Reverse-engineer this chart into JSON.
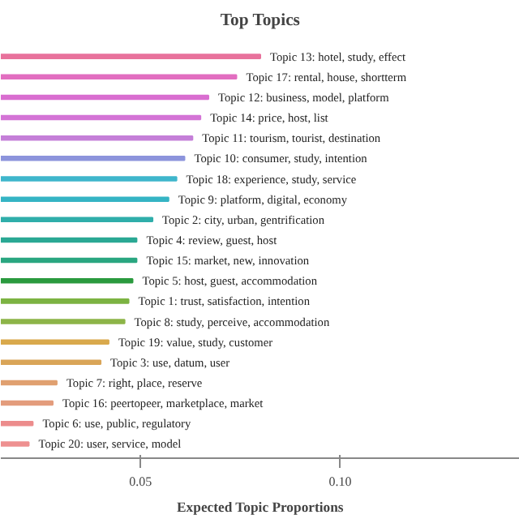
{
  "chart_data": {
    "type": "bar",
    "orientation": "horizontal",
    "title": "Top Topics",
    "xlabel": "Expected Topic Proportions",
    "categories": [
      "Topic 13: hotel, study, effect",
      "Topic 17: rental, house, shortterm",
      "Topic 12: business, model, platform",
      "Topic 14: price, host, list",
      "Topic 11: tourism, tourist, destination",
      "Topic 10: consumer, study, intention",
      "Topic 18: experience, study, service",
      "Topic 9: platform, digital, economy",
      "Topic 2: city, urban, gentrification",
      "Topic 4: review, guest, host",
      "Topic 15: market, new, innovation",
      "Topic 5: host, guest, accommodation",
      "Topic 1: trust, satisfaction, intention",
      "Topic 8: study, perceive, accommodation",
      "Topic 19: value, study, customer",
      "Topic 3: use, datum, user",
      "Topic 7: right, place, reserve",
      "Topic 16: peertopeer, marketplace, market",
      "Topic 6: use, public, regulatory",
      "Topic 20: user, service, model"
    ],
    "values": [
      0.08,
      0.074,
      0.067,
      0.065,
      0.063,
      0.061,
      0.059,
      0.057,
      0.053,
      0.049,
      0.049,
      0.048,
      0.047,
      0.046,
      0.042,
      0.04,
      0.029,
      0.028,
      0.023,
      0.022
    ],
    "colors": [
      "#e8729c",
      "#e26ec0",
      "#d96ed0",
      "#d474d6",
      "#c47fd8",
      "#8c94dc",
      "#3fb6cc",
      "#35b4c4",
      "#2faeaa",
      "#2aa894",
      "#2aa680",
      "#2a9a3e",
      "#7cb342",
      "#8db548",
      "#d9a94c",
      "#d9a558",
      "#e0a070",
      "#e39c7c",
      "#ec8c8c",
      "#ee9090"
    ],
    "xlim": [
      0.015,
      0.145
    ],
    "xticks": [
      0.05,
      {
        "value": 0.1,
        "label": "0.10"
      }
    ],
    "grid": false
  }
}
